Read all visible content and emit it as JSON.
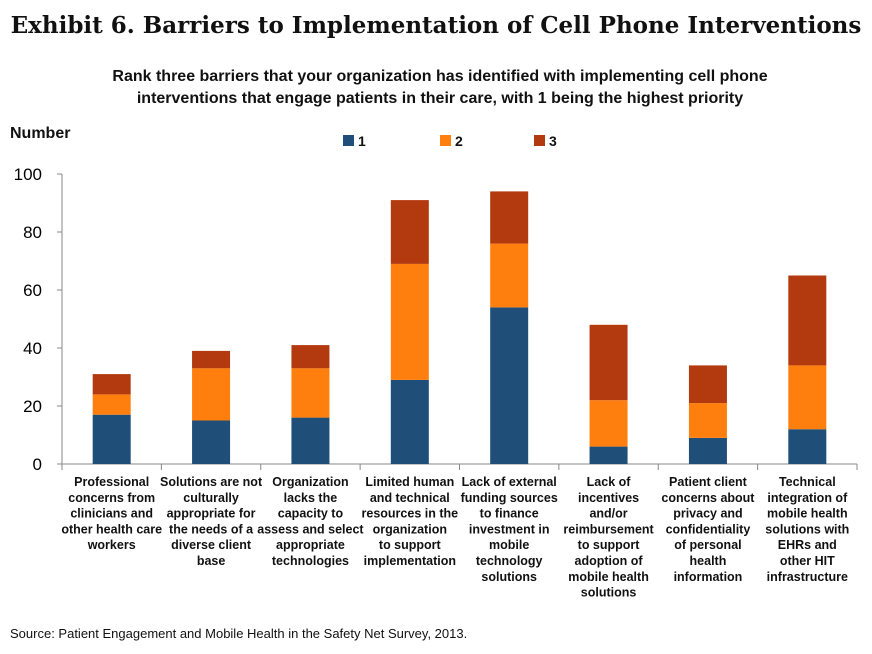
{
  "title": "Exhibit 6. Barriers to Implementation of Cell Phone Interventions",
  "subtitle": "Rank three barriers that your organization has identified with implementing cell phone interventions that engage patients in their care, with 1 being the highest priority",
  "source": "Source: Patient Engagement and Mobile Health in the Safety Net Survey, 2013.",
  "chart_data": {
    "type": "bar",
    "stacked": true,
    "ylabel": "Number",
    "ylim": [
      0,
      100
    ],
    "yticks": [
      0,
      20,
      40,
      60,
      80,
      100
    ],
    "grid": false,
    "legend_position": "top",
    "categories": [
      [
        "Professional",
        "concerns from",
        "clinicians and",
        "other health care",
        "workers"
      ],
      [
        "Solutions are not",
        "culturally",
        "appropriate for",
        "the needs of a",
        "diverse client",
        "base"
      ],
      [
        "Organization",
        "lacks the",
        "capacity to",
        "assess and select",
        "appropriate",
        "technologies"
      ],
      [
        "Limited human",
        "and technical",
        "resources in the",
        "organization",
        "to support",
        "implementation"
      ],
      [
        "Lack of external",
        "funding sources",
        "to finance",
        "investment in",
        "mobile",
        "technology",
        "solutions"
      ],
      [
        "Lack of",
        "incentives",
        "and/or",
        "reimbursement",
        "to support",
        "adoption of",
        "mobile health",
        "solutions"
      ],
      [
        "Patient  client",
        "concerns about",
        "privacy and",
        "confidentiality",
        "of personal",
        "health",
        "information"
      ],
      [
        "Technical",
        "integration of",
        "mobile health",
        "solutions with",
        "EHRs and",
        "other HIT",
        "infrastructure"
      ]
    ],
    "series": [
      {
        "name": "1",
        "color": "#1f4e79",
        "values": [
          17,
          15,
          16,
          29,
          54,
          6,
          9,
          12
        ]
      },
      {
        "name": "2",
        "color": "#ff7f0e",
        "values": [
          7,
          18,
          17,
          40,
          22,
          16,
          12,
          22
        ]
      },
      {
        "name": "3",
        "color": "#b33a0e",
        "values": [
          7,
          6,
          8,
          22,
          18,
          26,
          13,
          31
        ]
      }
    ]
  }
}
